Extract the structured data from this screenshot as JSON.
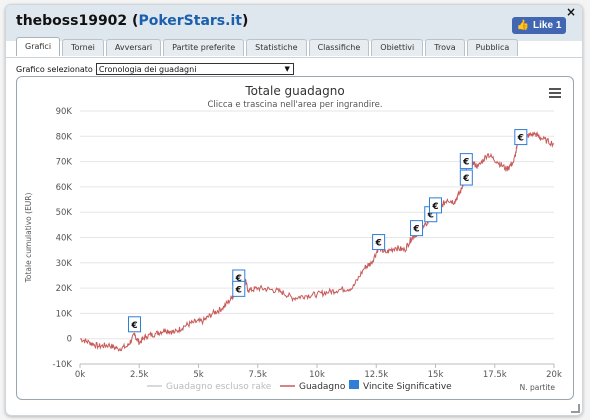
{
  "window": {
    "title_user": "theboss19902",
    "title_site": "PokerStars.it",
    "close_label": "×",
    "like_label": "Like 1"
  },
  "tabs": [
    {
      "label": "Grafici",
      "active": true
    },
    {
      "label": "Tornei",
      "active": false
    },
    {
      "label": "Avversari",
      "active": false
    },
    {
      "label": "Partite preferite",
      "active": false
    },
    {
      "label": "Statistiche",
      "active": false
    },
    {
      "label": "Classifiche",
      "active": false
    },
    {
      "label": "Obiettivi",
      "active": false
    },
    {
      "label": "Trova",
      "active": false
    },
    {
      "label": "Pubblica",
      "active": false
    }
  ],
  "selector": {
    "label": "Grafico selezionato",
    "value": "Cronologia dei guadagni"
  },
  "colors": {
    "accent": "#1b5fad",
    "profit_line": "#c85a5a",
    "rake_line": "#cccccc",
    "significant": "#2f7ed8",
    "grid": "#e6e6e6"
  },
  "chart_data": {
    "type": "line",
    "title": "Totale guadagno",
    "subtitle": "Clicca e trascina nell'area per ingrandire.",
    "ylabel": "Totale cumulativo (EUR)",
    "xlabel": "N. partite",
    "xlim": [
      0,
      20000
    ],
    "ylim": [
      -10000,
      90000
    ],
    "x_ticks": [
      0,
      2500,
      5000,
      7500,
      10000,
      12500,
      15000,
      17500,
      20000
    ],
    "x_tick_labels": [
      "0k",
      "2.5k",
      "5k",
      "7.5k",
      "10k",
      "12.5k",
      "15k",
      "17.5k",
      "20k"
    ],
    "y_ticks": [
      -10000,
      0,
      10000,
      20000,
      30000,
      40000,
      50000,
      60000,
      70000,
      80000,
      90000
    ],
    "y_tick_labels": [
      "-10K",
      "0",
      "10K",
      "20K",
      "30K",
      "40K",
      "50K",
      "60K",
      "70K",
      "80K",
      "90K"
    ],
    "grid": true,
    "legend_position": "bottom",
    "series": [
      {
        "name": "Guadagno escluso rake",
        "visible": false,
        "points": []
      },
      {
        "name": "Guadagno",
        "visible": true,
        "points": [
          [
            0,
            0
          ],
          [
            400,
            -1500
          ],
          [
            800,
            -3000
          ],
          [
            1200,
            -2500
          ],
          [
            1600,
            -4000
          ],
          [
            2000,
            -3000
          ],
          [
            2300,
            1500
          ],
          [
            2500,
            -1500
          ],
          [
            2800,
            1000
          ],
          [
            3200,
            2000
          ],
          [
            3600,
            3500
          ],
          [
            4000,
            2500
          ],
          [
            4400,
            5000
          ],
          [
            4800,
            6500
          ],
          [
            5200,
            7000
          ],
          [
            5600,
            10000
          ],
          [
            6000,
            12000
          ],
          [
            6400,
            16000
          ],
          [
            6700,
            21000
          ],
          [
            6900,
            25000
          ],
          [
            7100,
            19000
          ],
          [
            7500,
            20000
          ],
          [
            8000,
            19500
          ],
          [
            8500,
            18500
          ],
          [
            9000,
            16000
          ],
          [
            9500,
            17000
          ],
          [
            10000,
            17500
          ],
          [
            10500,
            18500
          ],
          [
            11000,
            19500
          ],
          [
            11500,
            20000
          ],
          [
            12000,
            28000
          ],
          [
            12300,
            30000
          ],
          [
            12600,
            36000
          ],
          [
            12900,
            34000
          ],
          [
            13300,
            36000
          ],
          [
            13700,
            35000
          ],
          [
            14000,
            40000
          ],
          [
            14300,
            42000
          ],
          [
            14600,
            45000
          ],
          [
            14900,
            50000
          ],
          [
            15200,
            52000
          ],
          [
            15500,
            55000
          ],
          [
            15800,
            54000
          ],
          [
            16100,
            59000
          ],
          [
            16300,
            67000
          ],
          [
            16500,
            70000
          ],
          [
            16800,
            68000
          ],
          [
            17200,
            73000
          ],
          [
            17600,
            70000
          ],
          [
            18000,
            67000
          ],
          [
            18300,
            70000
          ],
          [
            18500,
            78000
          ],
          [
            18800,
            80000
          ],
          [
            19200,
            81000
          ],
          [
            19500,
            79000
          ],
          [
            20000,
            77000
          ]
        ]
      }
    ],
    "significant_wins": [
      {
        "x": 2300,
        "y": 5500
      },
      {
        "x": 6700,
        "y": 24000
      },
      {
        "x": 6700,
        "y": 19500
      },
      {
        "x": 12600,
        "y": 38000
      },
      {
        "x": 14200,
        "y": 43500
      },
      {
        "x": 14800,
        "y": 49000
      },
      {
        "x": 15000,
        "y": 52500
      },
      {
        "x": 16300,
        "y": 63500
      },
      {
        "x": 16300,
        "y": 70000
      },
      {
        "x": 18600,
        "y": 79500
      }
    ],
    "marker_glyph": "€",
    "legend": [
      {
        "name": "Guadagno escluso rake",
        "kind": "line",
        "color": "#cccccc"
      },
      {
        "name": "Guadagno",
        "kind": "line",
        "color": "#c85a5a"
      },
      {
        "name": "Vincite Significative",
        "kind": "box",
        "color": "#2f7ed8"
      }
    ]
  }
}
